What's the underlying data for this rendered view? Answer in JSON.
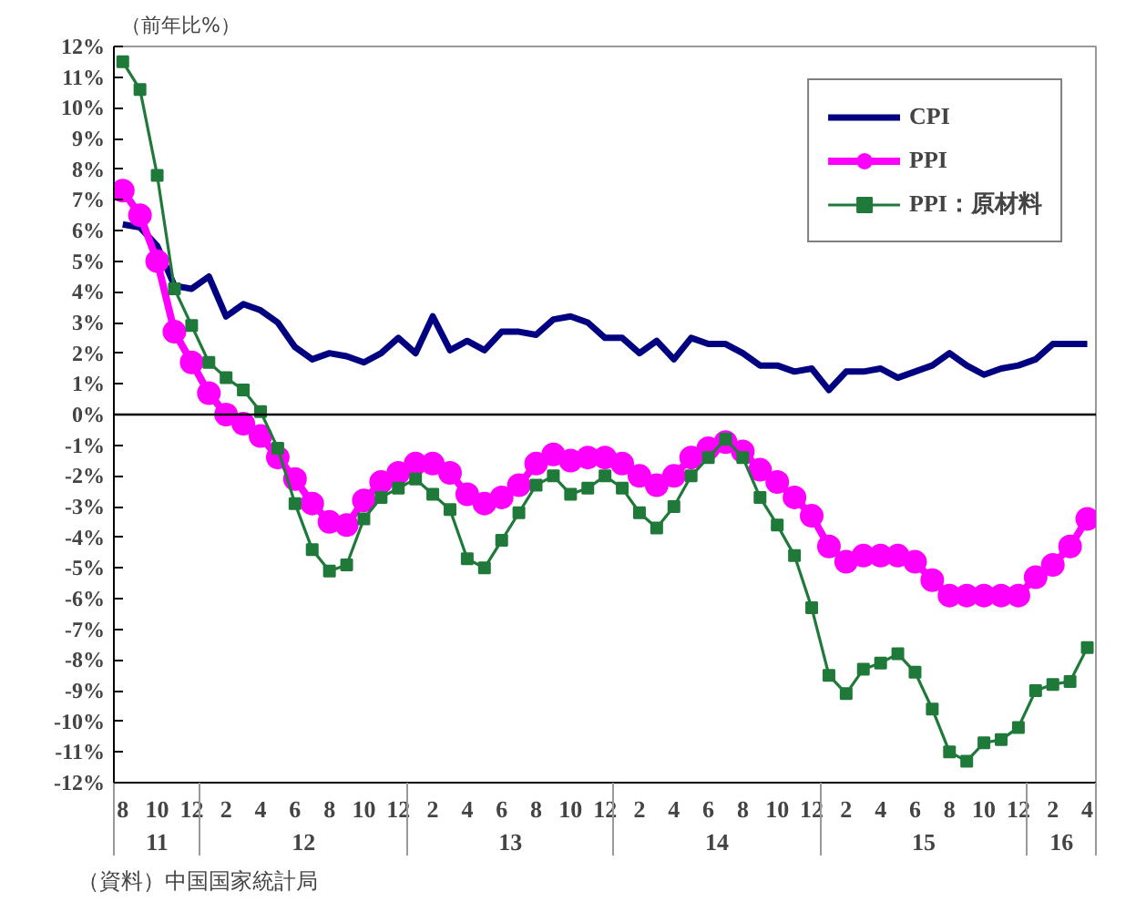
{
  "chart_data": {
    "type": "line",
    "ylabel": "（前年比%）",
    "x": [
      "2011-08",
      "2011-09",
      "2011-10",
      "2011-11",
      "2011-12",
      "2012-01",
      "2012-02",
      "2012-03",
      "2012-04",
      "2012-05",
      "2012-06",
      "2012-07",
      "2012-08",
      "2012-09",
      "2012-10",
      "2012-11",
      "2012-12",
      "2013-01",
      "2013-02",
      "2013-03",
      "2013-04",
      "2013-05",
      "2013-06",
      "2013-07",
      "2013-08",
      "2013-09",
      "2013-10",
      "2013-11",
      "2013-12",
      "2014-01",
      "2014-02",
      "2014-03",
      "2014-04",
      "2014-05",
      "2014-06",
      "2014-07",
      "2014-08",
      "2014-09",
      "2014-10",
      "2014-11",
      "2014-12",
      "2015-01",
      "2015-02",
      "2015-03",
      "2015-04",
      "2015-05",
      "2015-06",
      "2015-07",
      "2015-08",
      "2015-09",
      "2015-10",
      "2015-11",
      "2015-12",
      "2016-01",
      "2016-02",
      "2016-03",
      "2016-04"
    ],
    "series": [
      {
        "name": "CPI",
        "color": "#000080",
        "marker": "none",
        "values": [
          6.2,
          6.1,
          5.5,
          4.2,
          4.1,
          4.5,
          3.2,
          3.6,
          3.4,
          3.0,
          2.2,
          1.8,
          2.0,
          1.9,
          1.7,
          2.0,
          2.5,
          2.0,
          3.2,
          2.1,
          2.4,
          2.1,
          2.7,
          2.7,
          2.6,
          3.1,
          3.2,
          3.0,
          2.5,
          2.5,
          2.0,
          2.4,
          1.8,
          2.5,
          2.3,
          2.3,
          2.0,
          1.6,
          1.6,
          1.4,
          1.5,
          0.8,
          1.4,
          1.4,
          1.5,
          1.2,
          1.4,
          1.6,
          2.0,
          1.6,
          1.3,
          1.5,
          1.6,
          1.8,
          2.3,
          2.3,
          2.3
        ]
      },
      {
        "name": "PPI",
        "color": "#ff00ff",
        "marker": "circle",
        "values": [
          7.3,
          6.5,
          5.0,
          2.7,
          1.7,
          0.7,
          0.0,
          -0.3,
          -0.7,
          -1.4,
          -2.1,
          -2.9,
          -3.5,
          -3.6,
          -2.8,
          -2.2,
          -1.9,
          -1.6,
          -1.6,
          -1.9,
          -2.6,
          -2.9,
          -2.7,
          -2.3,
          -1.6,
          -1.3,
          -1.5,
          -1.4,
          -1.4,
          -1.6,
          -2.0,
          -2.3,
          -2.0,
          -1.4,
          -1.1,
          -0.9,
          -1.2,
          -1.8,
          -2.2,
          -2.7,
          -3.3,
          -4.3,
          -4.8,
          -4.6,
          -4.6,
          -4.6,
          -4.8,
          -5.4,
          -5.9,
          -5.9,
          -5.9,
          -5.9,
          -5.9,
          -5.3,
          -4.9,
          -4.3,
          -3.4
        ]
      },
      {
        "name": "PPI：原材料",
        "color": "#1f7a3a",
        "marker": "square",
        "values": [
          11.5,
          10.6,
          7.8,
          4.1,
          2.9,
          1.7,
          1.2,
          0.8,
          0.1,
          -1.1,
          -2.9,
          -4.4,
          -5.1,
          -4.9,
          -3.4,
          -2.7,
          -2.4,
          -2.1,
          -2.6,
          -3.1,
          -4.7,
          -5.0,
          -4.1,
          -3.2,
          -2.3,
          -2.0,
          -2.6,
          -2.4,
          -2.0,
          -2.4,
          -3.2,
          -3.7,
          -3.0,
          -2.0,
          -1.4,
          -0.8,
          -1.4,
          -2.7,
          -3.6,
          -4.6,
          -6.3,
          -8.5,
          -9.1,
          -8.3,
          -8.1,
          -7.8,
          -8.4,
          -9.6,
          -11.0,
          -11.3,
          -10.7,
          -10.6,
          -10.2,
          -9.0,
          -8.8,
          -8.7,
          -7.6
        ]
      }
    ],
    "xlim": [
      "2011-07-16",
      "2016-04-16"
    ],
    "ylim": [
      -12,
      12
    ],
    "yticks": [
      {
        "value": -12,
        "label": "-12%"
      },
      {
        "value": -11,
        "label": "-11%"
      },
      {
        "value": -10,
        "label": "-10%"
      },
      {
        "value": -9,
        "label": "-9%"
      },
      {
        "value": -8,
        "label": "-8%"
      },
      {
        "value": -7,
        "label": "-7%"
      },
      {
        "value": -6,
        "label": "-6%"
      },
      {
        "value": -5,
        "label": "-5%"
      },
      {
        "value": -4,
        "label": "-4%"
      },
      {
        "value": -3,
        "label": "-3%"
      },
      {
        "value": -2,
        "label": "-2%"
      },
      {
        "value": -1,
        "label": "-1%"
      },
      {
        "value": 0,
        "label": "0%"
      },
      {
        "value": 1,
        "label": "1%"
      },
      {
        "value": 2,
        "label": "2%"
      },
      {
        "value": 3,
        "label": "3%"
      },
      {
        "value": 4,
        "label": "4%"
      },
      {
        "value": 5,
        "label": "5%"
      },
      {
        "value": 6,
        "label": "6%"
      },
      {
        "value": 7,
        "label": "7%"
      },
      {
        "value": 8,
        "label": "8%"
      },
      {
        "value": 9,
        "label": "9%"
      },
      {
        "value": 10,
        "label": "10%"
      },
      {
        "value": 11,
        "label": "11%"
      },
      {
        "value": 12,
        "label": "12%"
      }
    ],
    "xticks": [
      {
        "value": "2011-08",
        "label": "8"
      },
      {
        "value": "2011-10",
        "label": "10"
      },
      {
        "value": "2011-12",
        "label": "12"
      },
      {
        "value": "2012-02",
        "label": "2"
      },
      {
        "value": "2012-04",
        "label": "4"
      },
      {
        "value": "2012-06",
        "label": "6"
      },
      {
        "value": "2012-08",
        "label": "8"
      },
      {
        "value": "2012-10",
        "label": "10"
      },
      {
        "value": "2012-12",
        "label": "12"
      },
      {
        "value": "2013-02",
        "label": "2"
      },
      {
        "value": "2013-04",
        "label": "4"
      },
      {
        "value": "2013-06",
        "label": "6"
      },
      {
        "value": "2013-08",
        "label": "8"
      },
      {
        "value": "2013-10",
        "label": "10"
      },
      {
        "value": "2013-12",
        "label": "12"
      },
      {
        "value": "2014-02",
        "label": "2"
      },
      {
        "value": "2014-04",
        "label": "4"
      },
      {
        "value": "2014-06",
        "label": "6"
      },
      {
        "value": "2014-08",
        "label": "8"
      },
      {
        "value": "2014-10",
        "label": "10"
      },
      {
        "value": "2014-12",
        "label": "12"
      },
      {
        "value": "2015-02",
        "label": "2"
      },
      {
        "value": "2015-04",
        "label": "4"
      },
      {
        "value": "2015-06",
        "label": "6"
      },
      {
        "value": "2015-08",
        "label": "8"
      },
      {
        "value": "2015-10",
        "label": "10"
      },
      {
        "value": "2015-12",
        "label": "12"
      },
      {
        "value": "2016-02",
        "label": "2"
      },
      {
        "value": "2016-04",
        "label": "4"
      }
    ],
    "ref_lines": [
      {
        "axis": "y",
        "value": 0,
        "color": "#000000"
      }
    ],
    "annotations": [
      "11",
      "12",
      "13",
      "14",
      "15",
      "16",
      "（資料）中国国家統計局"
    ],
    "legend": "top right",
    "grid": false
  }
}
